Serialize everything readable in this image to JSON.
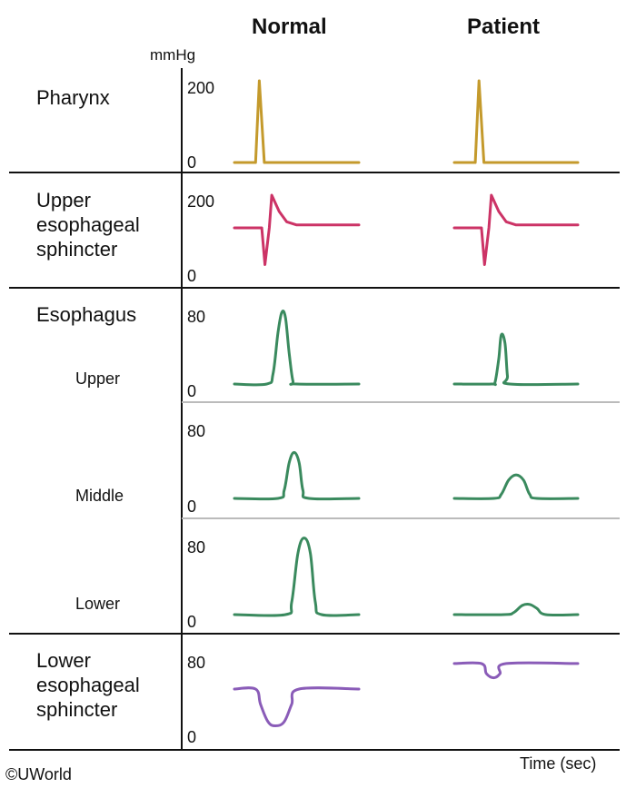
{
  "columns": [
    "Normal",
    "Patient"
  ],
  "unit_label": "mmHg",
  "x_axis_label": "Time (sec)",
  "credit": "©UWorld",
  "colors": {
    "pharynx": "#c49a2c",
    "upper_esophageal_sphincter": "#cc3366",
    "esophagus": "#3a8a5e",
    "lower_esophageal_sphincter": "#8a5cb8",
    "divider_major": "#111111",
    "divider_minor": "#bbbbbb"
  },
  "regions": [
    {
      "key": "pharynx",
      "label_lines": [
        "Pharynx"
      ],
      "y_max": 200,
      "ticks": [
        "200",
        "0"
      ],
      "color": "#c49a2c",
      "normal": [
        [
          0,
          0
        ],
        [
          0.17,
          0
        ],
        [
          0.2,
          200
        ],
        [
          0.24,
          0
        ],
        [
          1,
          0
        ]
      ],
      "patient": [
        [
          0,
          0
        ],
        [
          0.17,
          0
        ],
        [
          0.2,
          200
        ],
        [
          0.24,
          0
        ],
        [
          1,
          0
        ]
      ]
    },
    {
      "key": "upper_esophageal_sphincter",
      "label_lines": [
        "Upper",
        "esophageal",
        "sphincter"
      ],
      "y_max": 200,
      "ticks": [
        "200",
        "0"
      ],
      "color": "#cc3366",
      "normal": [
        [
          0,
          100
        ],
        [
          0.22,
          100
        ],
        [
          0.245,
          10
        ],
        [
          0.28,
          100
        ],
        [
          0.3,
          180
        ],
        [
          0.36,
          140
        ],
        [
          0.42,
          115
        ],
        [
          0.5,
          107
        ],
        [
          1,
          107
        ]
      ],
      "patient": [
        [
          0,
          100
        ],
        [
          0.22,
          100
        ],
        [
          0.245,
          10
        ],
        [
          0.28,
          100
        ],
        [
          0.3,
          180
        ],
        [
          0.36,
          140
        ],
        [
          0.42,
          115
        ],
        [
          0.5,
          107
        ],
        [
          1,
          107
        ]
      ]
    },
    {
      "key": "esophagus_upper",
      "label_lines": [
        "Esophagus"
      ],
      "sub_label": "Upper",
      "y_max": 80,
      "ticks": [
        "80",
        "0"
      ],
      "color": "#3a8a5e",
      "normal": [
        [
          0,
          0
        ],
        [
          0.26,
          0
        ],
        [
          0.31,
          10
        ],
        [
          0.35,
          50
        ],
        [
          0.38,
          70
        ],
        [
          0.41,
          65
        ],
        [
          0.44,
          30
        ],
        [
          0.47,
          3
        ],
        [
          0.5,
          0
        ],
        [
          1,
          0
        ]
      ],
      "patient": [
        [
          0,
          0
        ],
        [
          0.3,
          0
        ],
        [
          0.33,
          2
        ],
        [
          0.36,
          25
        ],
        [
          0.38,
          48
        ],
        [
          0.41,
          40
        ],
        [
          0.43,
          8
        ],
        [
          0.45,
          0
        ],
        [
          1,
          0
        ]
      ]
    },
    {
      "key": "esophagus_middle",
      "sub_label": "Middle",
      "y_max": 80,
      "ticks": [
        "80",
        "0"
      ],
      "color": "#3a8a5e",
      "normal": [
        [
          0,
          0
        ],
        [
          0.35,
          0
        ],
        [
          0.4,
          8
        ],
        [
          0.44,
          35
        ],
        [
          0.48,
          45
        ],
        [
          0.52,
          35
        ],
        [
          0.55,
          8
        ],
        [
          0.6,
          0
        ],
        [
          1,
          0
        ]
      ],
      "patient": [
        [
          0,
          0
        ],
        [
          0.32,
          0
        ],
        [
          0.38,
          4
        ],
        [
          0.44,
          18
        ],
        [
          0.5,
          23
        ],
        [
          0.56,
          18
        ],
        [
          0.61,
          4
        ],
        [
          0.67,
          0
        ],
        [
          1,
          0
        ]
      ]
    },
    {
      "key": "esophagus_lower",
      "sub_label": "Lower",
      "y_max": 80,
      "ticks": [
        "80",
        "0"
      ],
      "color": "#3a8a5e",
      "normal": [
        [
          0,
          0
        ],
        [
          0.41,
          0
        ],
        [
          0.46,
          12
        ],
        [
          0.51,
          60
        ],
        [
          0.56,
          75
        ],
        [
          0.61,
          60
        ],
        [
          0.65,
          12
        ],
        [
          0.7,
          0
        ],
        [
          1,
          0
        ]
      ],
      "patient": [
        [
          0,
          0
        ],
        [
          0.4,
          0
        ],
        [
          0.48,
          2
        ],
        [
          0.55,
          9
        ],
        [
          0.61,
          10
        ],
        [
          0.67,
          6
        ],
        [
          0.74,
          0
        ],
        [
          1,
          0
        ]
      ]
    },
    {
      "key": "lower_esophageal_sphincter",
      "label_lines": [
        "Lower",
        "esophageal",
        "sphincter"
      ],
      "y_max": 80,
      "ticks": [
        "80",
        "0"
      ],
      "color": "#8a5cb8",
      "normal": [
        [
          0,
          40
        ],
        [
          0.17,
          40
        ],
        [
          0.21,
          25
        ],
        [
          0.27,
          8
        ],
        [
          0.33,
          4
        ],
        [
          0.4,
          8
        ],
        [
          0.46,
          25
        ],
        [
          0.52,
          40
        ],
        [
          1,
          40
        ]
      ],
      "patient": [
        [
          0,
          65
        ],
        [
          0.22,
          65
        ],
        [
          0.26,
          55
        ],
        [
          0.32,
          51
        ],
        [
          0.37,
          55
        ],
        [
          0.42,
          65
        ],
        [
          1,
          65
        ]
      ]
    }
  ]
}
